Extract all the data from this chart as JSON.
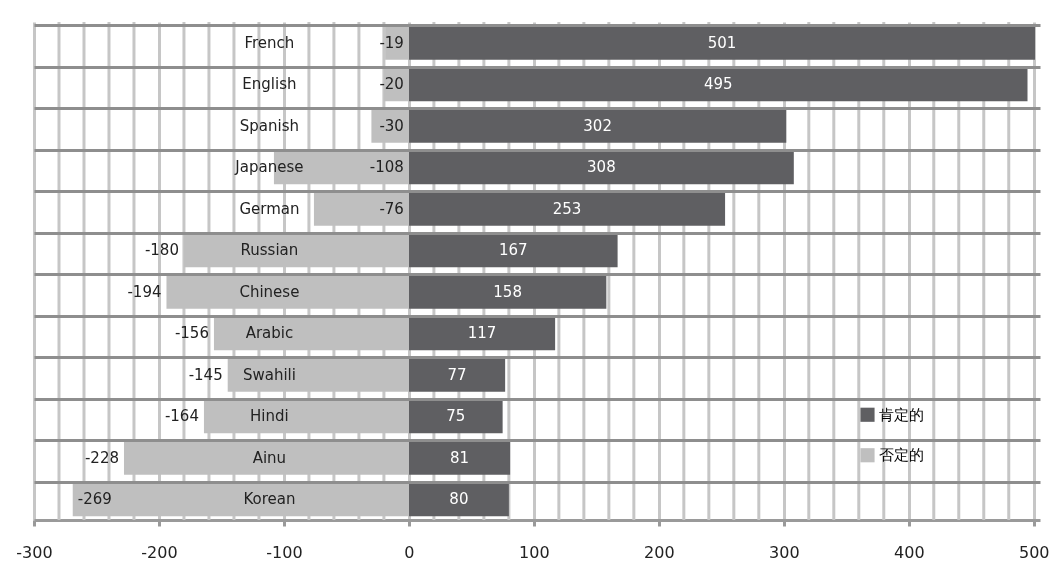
{
  "chart_data": {
    "type": "bar",
    "orientation": "horizontal",
    "categories": [
      "French",
      "English",
      "Spanish",
      "Japanese",
      "German",
      "Russian",
      "Chinese",
      "Arabic",
      "Swahili",
      "Hindi",
      "Ainu",
      "Korean"
    ],
    "series": [
      {
        "name": "肯定的",
        "color": "#5f5f62",
        "values": [
          501,
          495,
          302,
          308,
          253,
          167,
          158,
          117,
          77,
          75,
          81,
          80
        ]
      },
      {
        "name": "否定的",
        "color": "#bfbfbf",
        "values": [
          -19,
          -20,
          -30,
          -108,
          -76,
          -180,
          -194,
          -156,
          -145,
          -164,
          -228,
          -269
        ]
      }
    ],
    "xlim": [
      -300,
      505
    ],
    "xticks": [
      -300,
      {
        "value": -280,
        "label": null
      },
      {
        "value": -260,
        "label": null
      },
      {
        "value": -240,
        "label": null
      },
      {
        "value": -220,
        "label": null
      },
      -200,
      {
        "value": -180,
        "label": null
      },
      {
        "value": -160,
        "label": null
      },
      {
        "value": -140,
        "label": null
      },
      {
        "value": -120,
        "label": null
      },
      -100,
      {
        "value": -80,
        "label": null
      },
      {
        "value": -60,
        "label": null
      },
      {
        "value": -40,
        "label": null
      },
      {
        "value": -20,
        "label": null
      },
      0,
      {
        "value": 20,
        "label": null
      },
      {
        "value": 40,
        "label": null
      },
      {
        "value": 60,
        "label": null
      },
      {
        "value": 80,
        "label": null
      },
      100,
      {
        "value": 120,
        "label": null
      },
      {
        "value": 140,
        "label": null
      },
      {
        "value": 160,
        "label": null
      },
      {
        "value": 180,
        "label": null
      },
      200,
      {
        "value": 220,
        "label": null
      },
      {
        "value": 240,
        "label": null
      },
      {
        "value": 260,
        "label": null
      },
      {
        "value": 280,
        "label": null
      },
      300,
      {
        "value": 320,
        "label": null
      },
      {
        "value": 340,
        "label": null
      },
      {
        "value": 360,
        "label": null
      },
      {
        "value": 380,
        "label": null
      },
      400,
      {
        "value": 420,
        "label": null
      },
      {
        "value": 440,
        "label": null
      },
      {
        "value": 460,
        "label": null
      },
      {
        "value": 480,
        "label": null
      },
      500
    ],
    "grid": true,
    "data_labels": true,
    "stacked": true,
    "legend": "bottom right"
  }
}
